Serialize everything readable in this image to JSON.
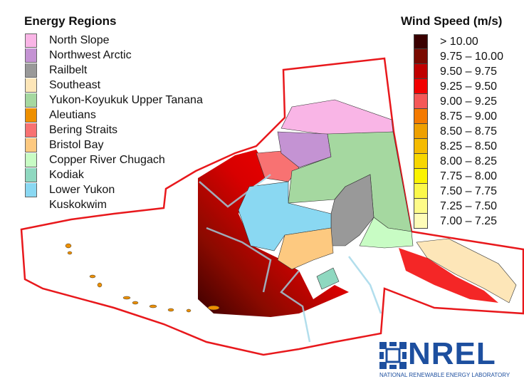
{
  "regions_legend": {
    "title": "Energy Regions",
    "items": [
      {
        "label": "North Slope",
        "color": "#f9b5e6"
      },
      {
        "label": "Northwest Arctic",
        "color": "#c493d3"
      },
      {
        "label": "Railbelt",
        "color": "#999999"
      },
      {
        "label": "Southeast",
        "color": "#fde6b8"
      },
      {
        "label": "Yukon-Koyukuk Upper Tanana",
        "color": "#a5d8a0"
      },
      {
        "label": "Aleutians",
        "color": "#ee9000"
      },
      {
        "label": "Bering Straits",
        "color": "#f87272"
      },
      {
        "label": "Bristol Bay",
        "color": "#fdc980"
      },
      {
        "label": "Copper River Chugach",
        "color": "#c8fcc4"
      },
      {
        "label": "Kodiak",
        "color": "#8fd8c0"
      },
      {
        "label": "Lower Yukon",
        "color": "#8ad8f2"
      }
    ],
    "last_label_extra": "Kuskokwim"
  },
  "wind_legend": {
    "title": "Wind Speed (m/s)",
    "items": [
      {
        "label": "> 10.00",
        "color": "#3a0000"
      },
      {
        "label": "9.75 – 10.00",
        "color": "#7a0a00"
      },
      {
        "label": "9.50 – 9.75",
        "color": "#c00000"
      },
      {
        "label": "9.25 – 9.50",
        "color": "#f20000"
      },
      {
        "label": "9.00 – 9.25",
        "color": "#f45858"
      },
      {
        "label": "8.75 – 9.00",
        "color": "#f47a00"
      },
      {
        "label": "8.50 – 8.75",
        "color": "#eea000"
      },
      {
        "label": "8.25 – 8.50",
        "color": "#f5bb00"
      },
      {
        "label": "8.00 – 8.25",
        "color": "#f7d600"
      },
      {
        "label": "7.75 – 8.00",
        "color": "#fbf300"
      },
      {
        "label": "7.50 – 7.75",
        "color": "#fbf84a"
      },
      {
        "label": "7.25 – 7.50",
        "color": "#fdfb88"
      },
      {
        "label": "7.00 – 7.25",
        "color": "#fefcb8"
      }
    ]
  },
  "logo": {
    "name": "NREL",
    "subtitle": "NATIONAL RENEWABLE ENERGY LABORATORY",
    "color": "#1d4f9f"
  },
  "boundary_color": "#e8181c"
}
